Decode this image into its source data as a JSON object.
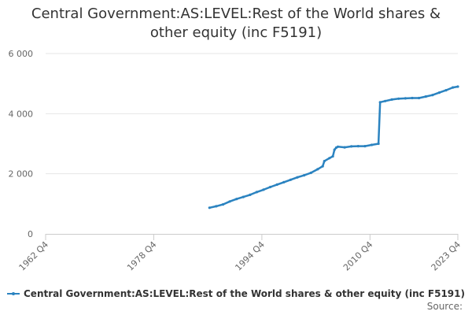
{
  "chart_data": {
    "type": "line",
    "title_lines": [
      "Central Government:AS:LEVEL:Rest of the World shares &",
      "other equity (inc F5191)"
    ],
    "xlabel": "",
    "ylabel": "",
    "x_tick_labels": [
      "1962 Q4",
      "1978 Q4",
      "1994 Q4",
      "2010 Q4",
      "2023 Q4"
    ],
    "x_tick_years": [
      1962.75,
      1978.75,
      1994.75,
      2010.75,
      2023.75
    ],
    "xlim": [
      1962.75,
      2023.75
    ],
    "y_tick_labels": [
      "0",
      "2 000",
      "4 000",
      "6 000"
    ],
    "y_tick_values": [
      0,
      2000,
      4000,
      6000
    ],
    "ylim": [
      0,
      6000
    ],
    "grid": true,
    "legend_position": "bottom",
    "series": [
      {
        "name": "Central Government:AS:LEVEL:Rest of the World shares & other equity (inc F5191)",
        "color": "#2b83c0",
        "points": [
          [
            1987.0,
            870
          ],
          [
            1988.0,
            920
          ],
          [
            1989.0,
            980
          ],
          [
            1990.0,
            1080
          ],
          [
            1991.0,
            1160
          ],
          [
            1992.0,
            1230
          ],
          [
            1993.0,
            1300
          ],
          [
            1994.0,
            1390
          ],
          [
            1995.0,
            1470
          ],
          [
            1996.0,
            1560
          ],
          [
            1997.0,
            1640
          ],
          [
            1998.0,
            1720
          ],
          [
            1999.0,
            1800
          ],
          [
            2000.0,
            1880
          ],
          [
            2001.0,
            1950
          ],
          [
            2002.0,
            2030
          ],
          [
            2003.0,
            2150
          ],
          [
            2003.75,
            2250
          ],
          [
            2004.0,
            2420
          ],
          [
            2004.75,
            2520
          ],
          [
            2005.25,
            2580
          ],
          [
            2005.5,
            2800
          ],
          [
            2005.75,
            2870
          ],
          [
            2006.0,
            2900
          ],
          [
            2007.0,
            2880
          ],
          [
            2008.0,
            2910
          ],
          [
            2009.0,
            2920
          ],
          [
            2010.0,
            2920
          ],
          [
            2011.0,
            2960
          ],
          [
            2012.0,
            3000
          ],
          [
            2012.25,
            4380
          ],
          [
            2013.0,
            4420
          ],
          [
            2014.0,
            4470
          ],
          [
            2015.0,
            4500
          ],
          [
            2016.0,
            4510
          ],
          [
            2017.0,
            4520
          ],
          [
            2018.0,
            4520
          ],
          [
            2019.0,
            4570
          ],
          [
            2020.0,
            4620
          ],
          [
            2021.0,
            4700
          ],
          [
            2022.0,
            4780
          ],
          [
            2023.0,
            4870
          ],
          [
            2023.75,
            4900
          ]
        ]
      }
    ]
  },
  "legend": {
    "label": "Central Government:AS:LEVEL:Rest of the World shares & other equity (inc F5191)"
  },
  "source_label": "Source:"
}
